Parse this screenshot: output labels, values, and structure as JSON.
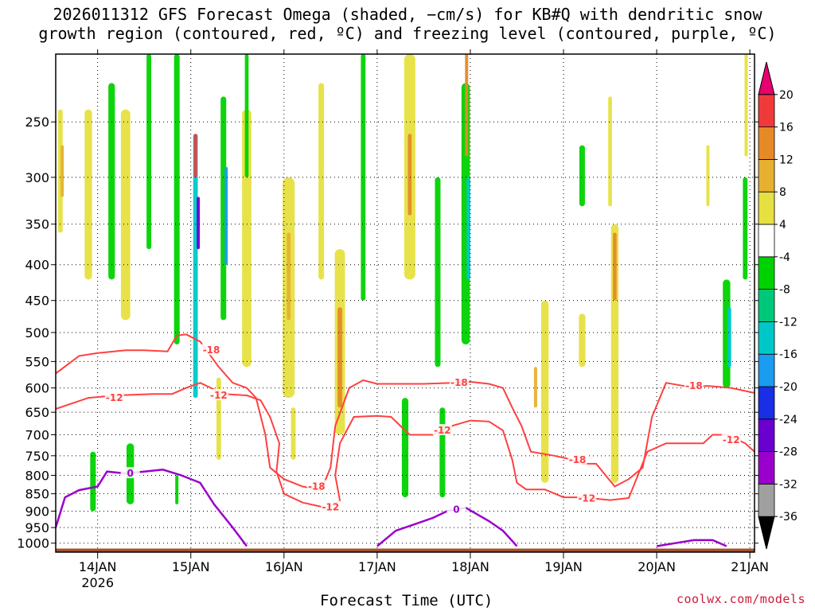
{
  "header": {
    "title_line1": "2026011312 GFS Forecast Omega (shaded, −cm/s) for KB#Q with dendritic snow",
    "title_line2": "growth region (contoured, red, ºC) and freezing level (contoured, purple, ºC)"
  },
  "footer": {
    "xlabel": "Forecast Time (UTC)",
    "credit": "coolwx.com/models"
  },
  "colors": {
    "dgz": "#ff4040",
    "freezing": "#9a00cc",
    "terrain": "#a0522d",
    "grid": "#000000"
  },
  "chart_data": {
    "type": "heatmap",
    "title": "2026011312 GFS Forecast Omega (shaded, −cm/s) for KB#Q with dendritic snow growth region (contoured, red, ºC) and freezing level (contoured, purple, ºC)",
    "xlabel": "Forecast Time (UTC)",
    "ylabel": "",
    "x_range_days": [
      13.55,
      21.05
    ],
    "y_range_hpa": [
      200,
      1030
    ],
    "x_ticks": [
      {
        "value": 14,
        "label": "14JAN",
        "sub": "2026"
      },
      {
        "value": 15,
        "label": "15JAN",
        "sub": ""
      },
      {
        "value": 16,
        "label": "16JAN",
        "sub": ""
      },
      {
        "value": 17,
        "label": "17JAN",
        "sub": ""
      },
      {
        "value": 18,
        "label": "18JAN",
        "sub": ""
      },
      {
        "value": 19,
        "label": "19JAN",
        "sub": ""
      },
      {
        "value": 20,
        "label": "20JAN",
        "sub": ""
      },
      {
        "value": 21,
        "label": "21JAN",
        "sub": ""
      }
    ],
    "y_ticks": [
      250,
      300,
      350,
      400,
      450,
      500,
      550,
      600,
      650,
      700,
      750,
      800,
      850,
      900,
      950,
      1000
    ],
    "colorbar": {
      "levels": [
        "-36",
        "-32",
        "-28",
        "-24",
        "-20",
        "-16",
        "-12",
        "-8",
        "-4",
        "4",
        "8",
        "12",
        "16",
        "20"
      ],
      "bins": [
        {
          "color": "#000000"
        },
        {
          "color": "#a0a0a0"
        },
        {
          "color": "#9a00cc"
        },
        {
          "color": "#6a00d0"
        },
        {
          "color": "#1a2ee6"
        },
        {
          "color": "#1a9cf0"
        },
        {
          "color": "#00c8c8"
        },
        {
          "color": "#00c87a"
        },
        {
          "color": "#00d200"
        },
        {
          "color": "#ffffff"
        },
        {
          "color": "#e6e040"
        },
        {
          "color": "#e6b030"
        },
        {
          "color": "#e68a28"
        },
        {
          "color": "#f03a3a"
        },
        {
          "color": "#e8006e"
        }
      ]
    },
    "omega_blobs": [
      {
        "day": 13.6,
        "p0": 240,
        "p1": 360,
        "w": 0.05,
        "color": "#e6e040"
      },
      {
        "day": 13.62,
        "p0": 270,
        "p1": 320,
        "w": 0.03,
        "color": "#e6b030"
      },
      {
        "day": 13.9,
        "p0": 240,
        "p1": 420,
        "w": 0.08,
        "color": "#e6e040"
      },
      {
        "day": 14.15,
        "p0": 220,
        "p1": 420,
        "w": 0.07,
        "color": "#00d200"
      },
      {
        "day": 14.3,
        "p0": 240,
        "p1": 480,
        "w": 0.1,
        "color": "#e6e040"
      },
      {
        "day": 14.55,
        "p0": 200,
        "p1": 380,
        "w": 0.05,
        "color": "#00d200"
      },
      {
        "day": 14.85,
        "p0": 200,
        "p1": 520,
        "w": 0.06,
        "color": "#00d200"
      },
      {
        "day": 15.05,
        "p0": 260,
        "p1": 620,
        "w": 0.05,
        "color": "#00c8c8"
      },
      {
        "day": 15.08,
        "p0": 320,
        "p1": 380,
        "w": 0.02,
        "color": "#6a00d0"
      },
      {
        "day": 15.05,
        "p0": 260,
        "p1": 300,
        "w": 0.02,
        "color": "#f03a3a"
      },
      {
        "day": 15.35,
        "p0": 230,
        "p1": 480,
        "w": 0.06,
        "color": "#00d200"
      },
      {
        "day": 15.38,
        "p0": 290,
        "p1": 400,
        "w": 0.02,
        "color": "#1a9cf0"
      },
      {
        "day": 15.6,
        "p0": 240,
        "p1": 560,
        "w": 0.1,
        "color": "#e6e040"
      },
      {
        "day": 15.6,
        "p0": 200,
        "p1": 300,
        "w": 0.04,
        "color": "#00d200"
      },
      {
        "day": 16.05,
        "p0": 300,
        "p1": 620,
        "w": 0.13,
        "color": "#e6e040"
      },
      {
        "day": 16.05,
        "p0": 360,
        "p1": 480,
        "w": 0.04,
        "color": "#e6b030"
      },
      {
        "day": 16.4,
        "p0": 220,
        "p1": 420,
        "w": 0.06,
        "color": "#e6e040"
      },
      {
        "day": 16.6,
        "p0": 380,
        "p1": 700,
        "w": 0.11,
        "color": "#e6e040"
      },
      {
        "day": 16.6,
        "p0": 460,
        "p1": 640,
        "w": 0.05,
        "color": "#e68a28"
      },
      {
        "day": 16.85,
        "p0": 200,
        "p1": 450,
        "w": 0.05,
        "color": "#00d200"
      },
      {
        "day": 17.35,
        "p0": 200,
        "p1": 420,
        "w": 0.12,
        "color": "#e6e040"
      },
      {
        "day": 17.35,
        "p0": 260,
        "p1": 340,
        "w": 0.04,
        "color": "#e68a28"
      },
      {
        "day": 17.65,
        "p0": 300,
        "p1": 560,
        "w": 0.06,
        "color": "#00d200"
      },
      {
        "day": 17.95,
        "p0": 220,
        "p1": 520,
        "w": 0.09,
        "color": "#00d200"
      },
      {
        "day": 17.98,
        "p0": 300,
        "p1": 420,
        "w": 0.04,
        "color": "#00c8c8"
      },
      {
        "day": 17.96,
        "p0": 200,
        "p1": 280,
        "w": 0.03,
        "color": "#e68a28"
      },
      {
        "day": 17.3,
        "p0": 620,
        "p1": 860,
        "w": 0.07,
        "color": "#00d200"
      },
      {
        "day": 17.7,
        "p0": 640,
        "p1": 860,
        "w": 0.06,
        "color": "#00d200"
      },
      {
        "day": 18.8,
        "p0": 450,
        "p1": 820,
        "w": 0.08,
        "color": "#e6e040"
      },
      {
        "day": 18.7,
        "p0": 560,
        "p1": 640,
        "w": 0.03,
        "color": "#e6b030"
      },
      {
        "day": 19.2,
        "p0": 470,
        "p1": 560,
        "w": 0.07,
        "color": "#e6e040"
      },
      {
        "day": 19.55,
        "p0": 350,
        "p1": 820,
        "w": 0.08,
        "color": "#e6e040"
      },
      {
        "day": 19.55,
        "p0": 360,
        "p1": 450,
        "w": 0.04,
        "color": "#e68a28"
      },
      {
        "day": 19.5,
        "p0": 230,
        "p1": 330,
        "w": 0.04,
        "color": "#e6e040"
      },
      {
        "day": 19.2,
        "p0": 270,
        "p1": 330,
        "w": 0.06,
        "color": "#00d200"
      },
      {
        "day": 20.55,
        "p0": 270,
        "p1": 330,
        "w": 0.03,
        "color": "#e6e040"
      },
      {
        "day": 20.75,
        "p0": 420,
        "p1": 600,
        "w": 0.08,
        "color": "#00d200"
      },
      {
        "day": 20.78,
        "p0": 460,
        "p1": 560,
        "w": 0.04,
        "color": "#00c8c8"
      },
      {
        "day": 20.95,
        "p0": 300,
        "p1": 420,
        "w": 0.05,
        "color": "#00d200"
      },
      {
        "day": 20.96,
        "p0": 200,
        "p1": 280,
        "w": 0.02,
        "color": "#e6e040"
      },
      {
        "day": 14.35,
        "p0": 720,
        "p1": 880,
        "w": 0.08,
        "color": "#00d200"
      },
      {
        "day": 13.95,
        "p0": 740,
        "p1": 900,
        "w": 0.06,
        "color": "#00d200"
      },
      {
        "day": 14.85,
        "p0": 800,
        "p1": 880,
        "w": 0.03,
        "color": "#00d200"
      },
      {
        "day": 15.3,
        "p0": 580,
        "p1": 760,
        "w": 0.05,
        "color": "#e6e040"
      },
      {
        "day": 16.1,
        "p0": 640,
        "p1": 760,
        "w": 0.05,
        "color": "#e6e040"
      }
    ],
    "dgz_minus12": [
      [
        13.55,
        643
      ],
      [
        13.9,
        620
      ],
      [
        14.2,
        615
      ],
      [
        14.6,
        612
      ],
      [
        14.8,
        612
      ],
      [
        14.95,
        600
      ],
      [
        15.1,
        590
      ],
      [
        15.35,
        612
      ],
      [
        15.6,
        615
      ],
      [
        15.75,
        625
      ],
      [
        15.85,
        660
      ],
      [
        15.95,
        720
      ],
      [
        15.92,
        790
      ],
      [
        16.0,
        850
      ],
      [
        16.2,
        875
      ],
      [
        16.45,
        890
      ],
      [
        16.6,
        870
      ],
      [
        16.55,
        800
      ],
      [
        16.6,
        720
      ],
      [
        16.75,
        660
      ],
      [
        17.0,
        658
      ],
      [
        17.15,
        660
      ],
      [
        17.25,
        680
      ],
      [
        17.35,
        700
      ],
      [
        17.6,
        700
      ],
      [
        17.8,
        680
      ],
      [
        18.0,
        668
      ],
      [
        18.2,
        670
      ],
      [
        18.35,
        690
      ],
      [
        18.45,
        760
      ],
      [
        18.5,
        820
      ],
      [
        18.6,
        838
      ],
      [
        18.8,
        838
      ],
      [
        19.0,
        860
      ],
      [
        19.2,
        860
      ],
      [
        19.5,
        868
      ],
      [
        19.7,
        862
      ],
      [
        19.9,
        740
      ],
      [
        20.1,
        720
      ],
      [
        20.3,
        720
      ],
      [
        20.5,
        720
      ],
      [
        20.6,
        700
      ],
      [
        20.75,
        700
      ],
      [
        20.95,
        720
      ],
      [
        21.05,
        740
      ]
    ],
    "dgz_minus18": [
      [
        13.55,
        572
      ],
      [
        13.8,
        540
      ],
      [
        14.0,
        535
      ],
      [
        14.3,
        530
      ],
      [
        14.5,
        530
      ],
      [
        14.75,
        532
      ],
      [
        14.85,
        505
      ],
      [
        14.95,
        503
      ],
      [
        15.1,
        515
      ],
      [
        15.3,
        560
      ],
      [
        15.45,
        590
      ],
      [
        15.6,
        600
      ],
      [
        15.7,
        620
      ],
      [
        15.8,
        700
      ],
      [
        15.85,
        780
      ],
      [
        16.0,
        810
      ],
      [
        16.2,
        830
      ],
      [
        16.4,
        840
      ],
      [
        16.5,
        780
      ],
      [
        16.55,
        680
      ],
      [
        16.7,
        600
      ],
      [
        16.85,
        585
      ],
      [
        17.0,
        592
      ],
      [
        17.5,
        592
      ],
      [
        17.8,
        590
      ],
      [
        18.0,
        588
      ],
      [
        18.2,
        592
      ],
      [
        18.35,
        600
      ],
      [
        18.45,
        640
      ],
      [
        18.55,
        680
      ],
      [
        18.65,
        740
      ],
      [
        18.9,
        750
      ],
      [
        19.1,
        760
      ],
      [
        19.2,
        770
      ],
      [
        19.35,
        770
      ],
      [
        19.55,
        830
      ],
      [
        19.7,
        810
      ],
      [
        19.85,
        780
      ],
      [
        19.95,
        660
      ],
      [
        20.1,
        590
      ],
      [
        20.35,
        598
      ],
      [
        20.55,
        596
      ],
      [
        20.8,
        600
      ],
      [
        21.05,
        610
      ]
    ],
    "freezing_0c": [
      [
        13.55,
        950
      ],
      [
        13.65,
        860
      ],
      [
        13.8,
        840
      ],
      [
        14.0,
        830
      ],
      [
        14.1,
        790
      ],
      [
        14.3,
        795
      ],
      [
        14.5,
        790
      ],
      [
        14.7,
        785
      ],
      [
        14.9,
        800
      ],
      [
        15.1,
        820
      ],
      [
        15.25,
        880
      ],
      [
        15.45,
        950
      ],
      [
        15.6,
        1010
      ]
    ],
    "freezing_0c_b": [
      [
        17.0,
        1010
      ],
      [
        17.2,
        960
      ],
      [
        17.4,
        940
      ],
      [
        17.6,
        920
      ],
      [
        17.75,
        900
      ],
      [
        17.95,
        890
      ],
      [
        18.2,
        930
      ],
      [
        18.35,
        960
      ],
      [
        18.5,
        1010
      ]
    ],
    "freezing_0c_c": [
      [
        20.0,
        1010
      ],
      [
        20.2,
        1000
      ],
      [
        20.4,
        990
      ],
      [
        20.6,
        990
      ],
      [
        20.75,
        1010
      ]
    ],
    "contour_labels": [
      {
        "text": "-18",
        "day": 15.22,
        "p": 530,
        "color": "dgz"
      },
      {
        "text": "-12",
        "day": 14.18,
        "p": 620,
        "color": "dgz"
      },
      {
        "text": "-12",
        "day": 15.3,
        "p": 615,
        "color": "dgz"
      },
      {
        "text": "-18",
        "day": 16.35,
        "p": 830,
        "color": "dgz"
      },
      {
        "text": "-12",
        "day": 16.5,
        "p": 888,
        "color": "dgz"
      },
      {
        "text": "-18",
        "day": 17.88,
        "p": 590,
        "color": "dgz"
      },
      {
        "text": "-12",
        "day": 17.7,
        "p": 690,
        "color": "dgz"
      },
      {
        "text": "-18",
        "day": 19.15,
        "p": 760,
        "color": "dgz"
      },
      {
        "text": "-12",
        "day": 19.25,
        "p": 863,
        "color": "dgz"
      },
      {
        "text": "-18",
        "day": 20.4,
        "p": 596,
        "color": "dgz"
      },
      {
        "text": "-12",
        "day": 20.8,
        "p": 712,
        "color": "dgz"
      },
      {
        "text": "0",
        "day": 14.35,
        "p": 795,
        "color": "freezing"
      },
      {
        "text": "0",
        "day": 17.85,
        "p": 895,
        "color": "freezing"
      }
    ]
  }
}
